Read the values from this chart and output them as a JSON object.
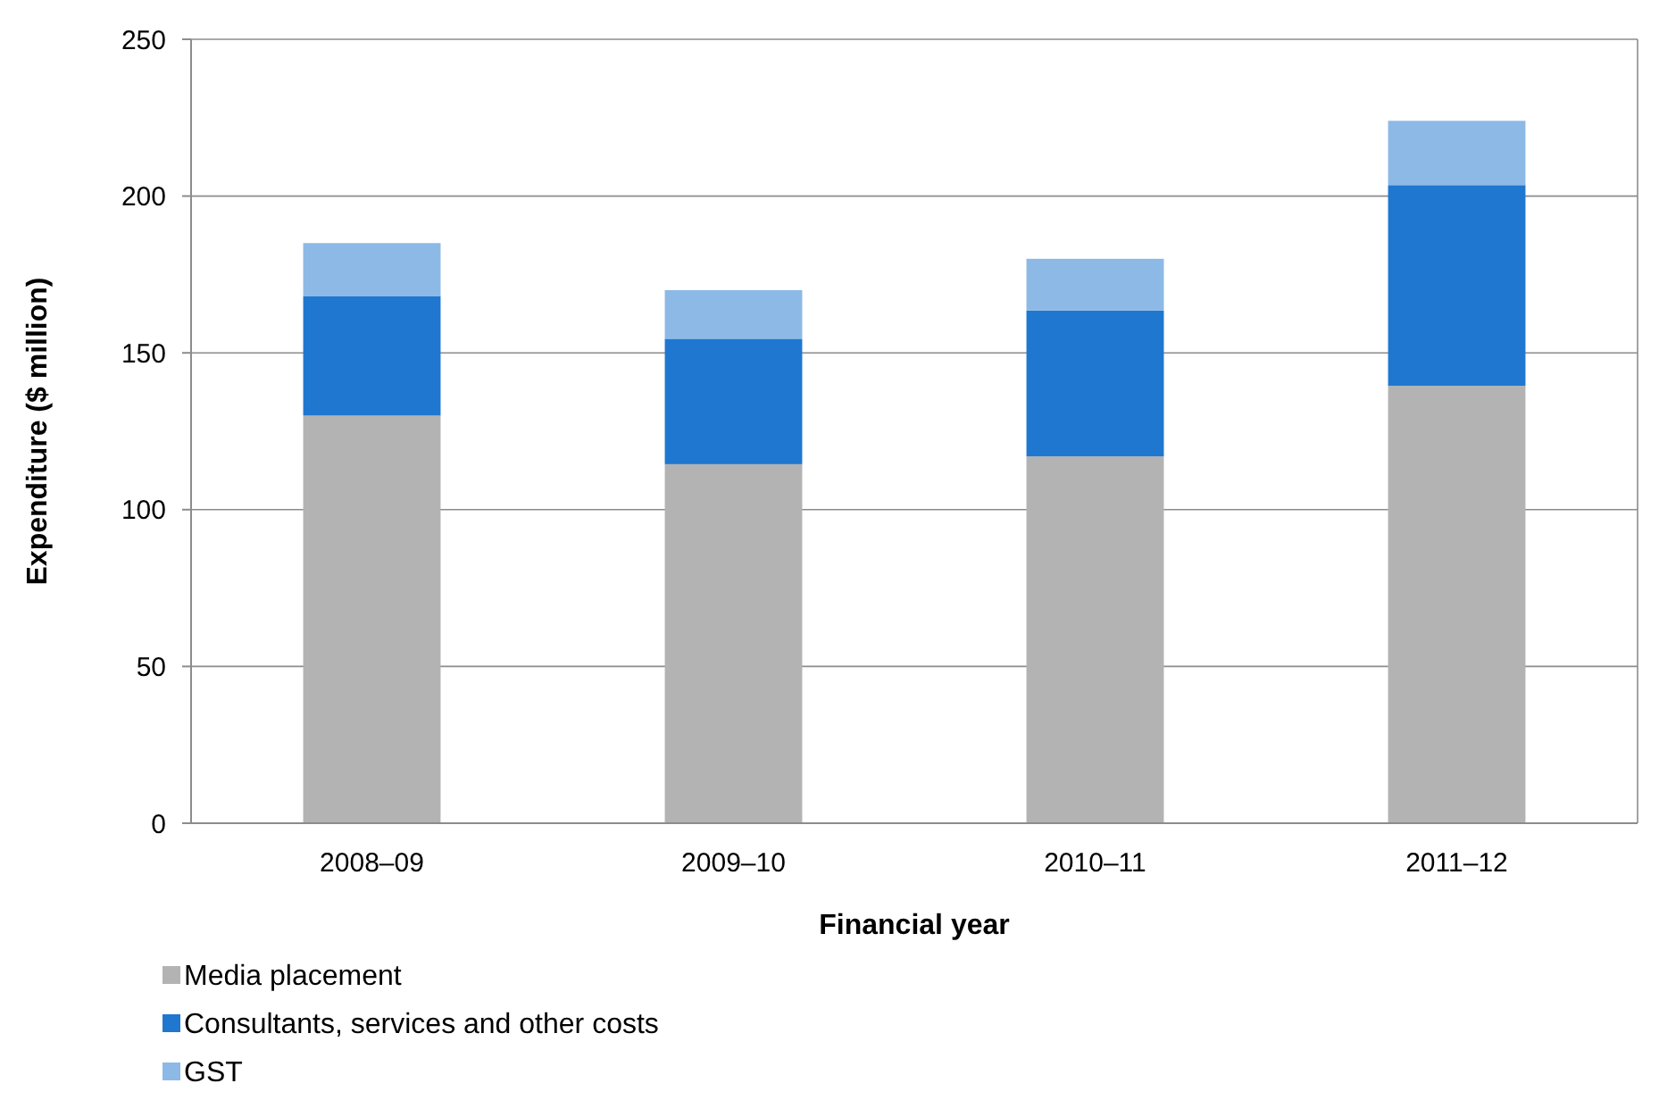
{
  "chart_data": {
    "type": "bar",
    "stacked": true,
    "xlabel": "Financial year",
    "ylabel": "Expenditure ($ million)",
    "categories": [
      "2008–09",
      "2009–10",
      "2010–11",
      "2011–12"
    ],
    "series": [
      {
        "name": "Media placement",
        "color": "#b3b3b3",
        "values": [
          130,
          114.5,
          117,
          139.5
        ]
      },
      {
        "name": "Consultants, services and other costs",
        "color": "#1f77d0",
        "values": [
          38,
          40,
          46.5,
          64
        ]
      },
      {
        "name": "GST",
        "color": "#8db9e6",
        "values": [
          17,
          15.5,
          16.5,
          20.5
        ]
      }
    ],
    "ylim": [
      0,
      250
    ],
    "yticks": [
      0,
      50,
      100,
      150,
      200,
      250
    ],
    "grid": "y",
    "legend": "bottom"
  }
}
